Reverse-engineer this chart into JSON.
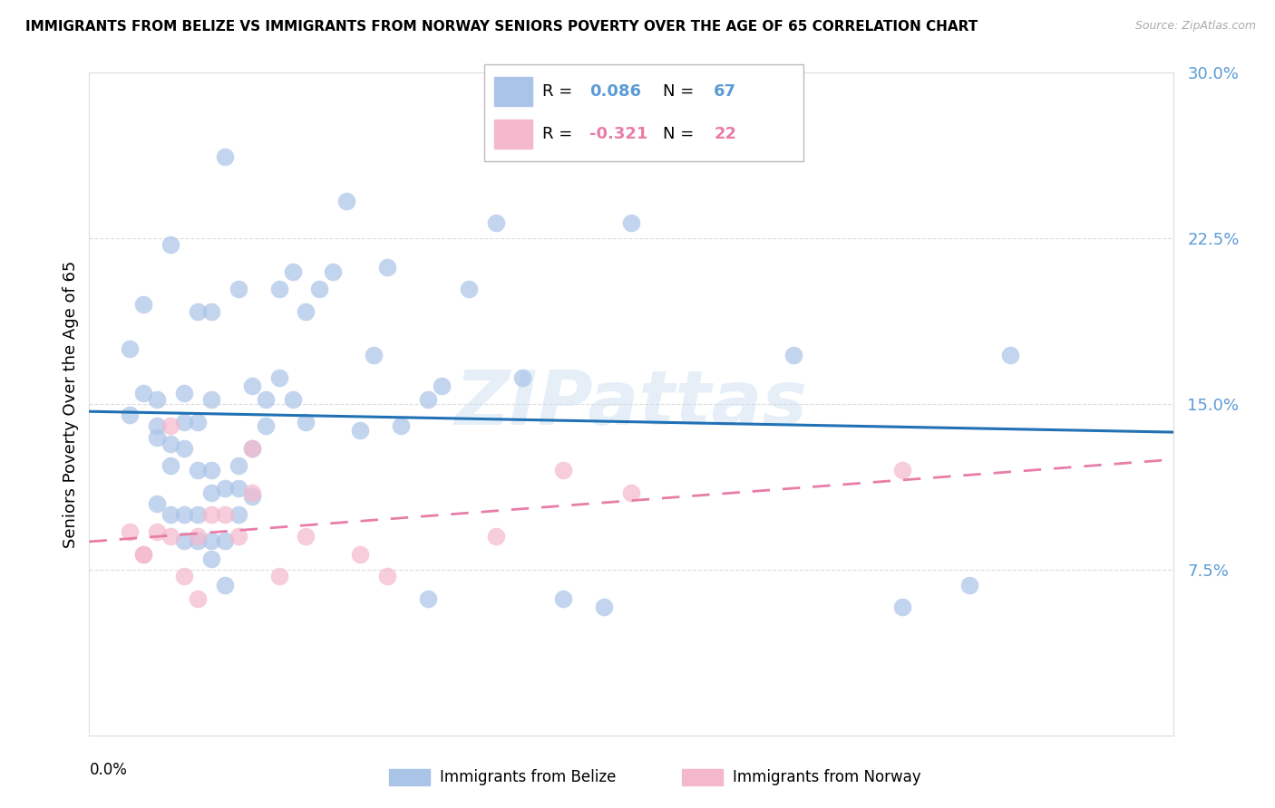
{
  "title": "IMMIGRANTS FROM BELIZE VS IMMIGRANTS FROM NORWAY SENIORS POVERTY OVER THE AGE OF 65 CORRELATION CHART",
  "source": "Source: ZipAtlas.com",
  "ylabel": "Seniors Poverty Over the Age of 65",
  "yticks": [
    0.0,
    0.075,
    0.15,
    0.225,
    0.3
  ],
  "ytick_labels": [
    "",
    "7.5%",
    "15.0%",
    "22.5%",
    "30.0%"
  ],
  "xlim": [
    0.0,
    0.08
  ],
  "ylim": [
    0.0,
    0.3
  ],
  "belize_R": 0.086,
  "belize_N": 67,
  "norway_R": -0.321,
  "norway_N": 22,
  "belize_color": "#aac4e8",
  "norway_color": "#f4b8cc",
  "belize_line_color": "#2171b5",
  "norway_line_color": "#e87da8",
  "background_color": "#ffffff",
  "grid_color": "#dddddd",
  "ytick_color": "#5b9bd5",
  "belize_x": [
    0.003,
    0.003,
    0.004,
    0.004,
    0.005,
    0.005,
    0.005,
    0.005,
    0.006,
    0.006,
    0.006,
    0.006,
    0.007,
    0.007,
    0.007,
    0.007,
    0.007,
    0.008,
    0.008,
    0.008,
    0.008,
    0.008,
    0.009,
    0.009,
    0.009,
    0.009,
    0.009,
    0.009,
    0.01,
    0.01,
    0.01,
    0.01,
    0.011,
    0.011,
    0.011,
    0.011,
    0.012,
    0.012,
    0.012,
    0.013,
    0.013,
    0.014,
    0.014,
    0.015,
    0.015,
    0.016,
    0.016,
    0.017,
    0.018,
    0.019,
    0.02,
    0.021,
    0.022,
    0.023,
    0.025,
    0.025,
    0.026,
    0.028,
    0.03,
    0.032,
    0.035,
    0.038,
    0.04,
    0.052,
    0.06,
    0.065,
    0.068
  ],
  "belize_y": [
    0.145,
    0.175,
    0.155,
    0.195,
    0.105,
    0.135,
    0.14,
    0.152,
    0.1,
    0.122,
    0.132,
    0.222,
    0.088,
    0.1,
    0.13,
    0.142,
    0.155,
    0.088,
    0.1,
    0.12,
    0.142,
    0.192,
    0.08,
    0.088,
    0.11,
    0.12,
    0.152,
    0.192,
    0.068,
    0.088,
    0.112,
    0.262,
    0.1,
    0.112,
    0.122,
    0.202,
    0.108,
    0.13,
    0.158,
    0.14,
    0.152,
    0.162,
    0.202,
    0.152,
    0.21,
    0.142,
    0.192,
    0.202,
    0.21,
    0.242,
    0.138,
    0.172,
    0.212,
    0.14,
    0.062,
    0.152,
    0.158,
    0.202,
    0.232,
    0.162,
    0.062,
    0.058,
    0.232,
    0.172,
    0.058,
    0.068,
    0.172
  ],
  "norway_x": [
    0.003,
    0.004,
    0.004,
    0.005,
    0.006,
    0.006,
    0.007,
    0.008,
    0.008,
    0.009,
    0.01,
    0.011,
    0.012,
    0.012,
    0.014,
    0.016,
    0.02,
    0.022,
    0.03,
    0.035,
    0.04,
    0.06
  ],
  "norway_y": [
    0.092,
    0.082,
    0.082,
    0.092,
    0.09,
    0.14,
    0.072,
    0.062,
    0.09,
    0.1,
    0.1,
    0.09,
    0.11,
    0.13,
    0.072,
    0.09,
    0.082,
    0.072,
    0.09,
    0.12,
    0.11,
    0.12
  ]
}
